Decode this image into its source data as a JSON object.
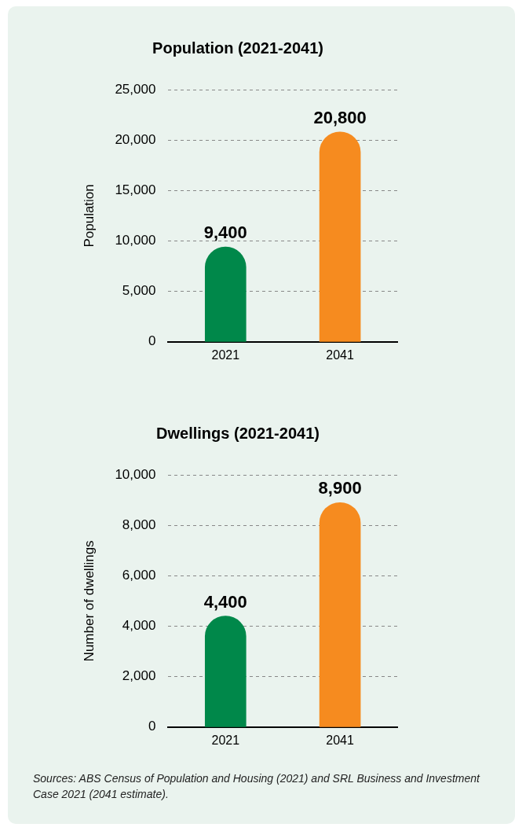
{
  "chart_data": [
    {
      "type": "bar",
      "title": "Population (2021-2041)",
      "ylabel": "Population",
      "categories": [
        "2021",
        "2041"
      ],
      "values": [
        9400,
        20800
      ],
      "value_labels": [
        "9,400",
        "20,800"
      ],
      "colors": [
        "#00884a",
        "#f68b1f"
      ],
      "ylim": [
        0,
        25000
      ],
      "yticks": [
        0,
        {
          "value": 5000,
          "label": "5,000"
        },
        {
          "value": 10000,
          "label": "10,000"
        },
        {
          "value": 15000,
          "label": "15,000"
        },
        {
          "value": 20000,
          "label": "20,000"
        },
        {
          "value": 25000,
          "label": "25,000"
        }
      ],
      "grid": "y",
      "legend": false
    },
    {
      "type": "bar",
      "title": "Dwellings (2021-2041)",
      "ylabel": "Number of dwellings",
      "categories": [
        "2021",
        "2041"
      ],
      "values": [
        4400,
        8900
      ],
      "value_labels": [
        "4,400",
        "8,900"
      ],
      "colors": [
        "#00884a",
        "#f68b1f"
      ],
      "ylim": [
        0,
        10000
      ],
      "yticks": [
        0,
        {
          "value": 2000,
          "label": "2,000"
        },
        {
          "value": 4000,
          "label": "4,000"
        },
        {
          "value": 6000,
          "label": "6,000"
        },
        {
          "value": 8000,
          "label": "8,000"
        },
        {
          "value": 10000,
          "label": "10,000"
        }
      ],
      "grid": "y",
      "legend": false,
      "annotations": [
        "Sources: ABS Census of Population and Housing (2021) and SRL Business and Investment Case 2021 (2041 estimate)."
      ]
    }
  ]
}
